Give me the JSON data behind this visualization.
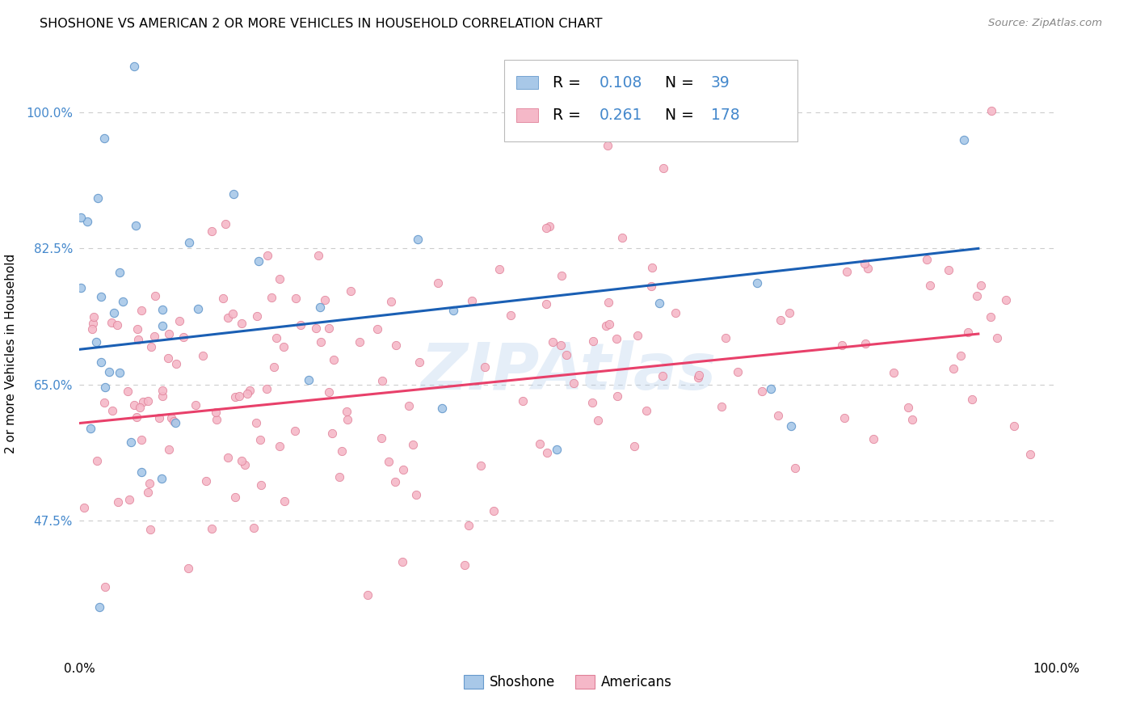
{
  "title": "SHOSHONE VS AMERICAN 2 OR MORE VEHICLES IN HOUSEHOLD CORRELATION CHART",
  "source": "Source: ZipAtlas.com",
  "ylabel": "2 or more Vehicles in Household",
  "xlim": [
    0.0,
    1.0
  ],
  "ylim": [
    0.3,
    1.08
  ],
  "ytick_positions": [
    0.475,
    0.65,
    0.825,
    1.0
  ],
  "ytick_labels": [
    "47.5%",
    "65.0%",
    "82.5%",
    "100.0%"
  ],
  "xtick_positions": [
    0.0,
    0.2,
    0.4,
    0.6,
    0.8,
    1.0
  ],
  "shoshone_color": "#a8c8e8",
  "shoshone_edge": "#6699cc",
  "american_color": "#f5b8c8",
  "american_edge": "#e08098",
  "trend_shoshone_color": "#1a5fb4",
  "trend_american_color": "#e8406a",
  "ytick_color": "#4488cc",
  "watermark_color": "#aac8e8",
  "grid_color": "#cccccc",
  "R_shoshone": 0.108,
  "N_shoshone": 39,
  "R_american": 0.261,
  "N_american": 178,
  "trend_shoshone_x0": 0.0,
  "trend_shoshone_x1": 0.92,
  "trend_shoshone_y0": 0.695,
  "trend_shoshone_y1": 0.825,
  "trend_american_x0": 0.0,
  "trend_american_x1": 0.92,
  "trend_american_y0": 0.6,
  "trend_american_y1": 0.715
}
